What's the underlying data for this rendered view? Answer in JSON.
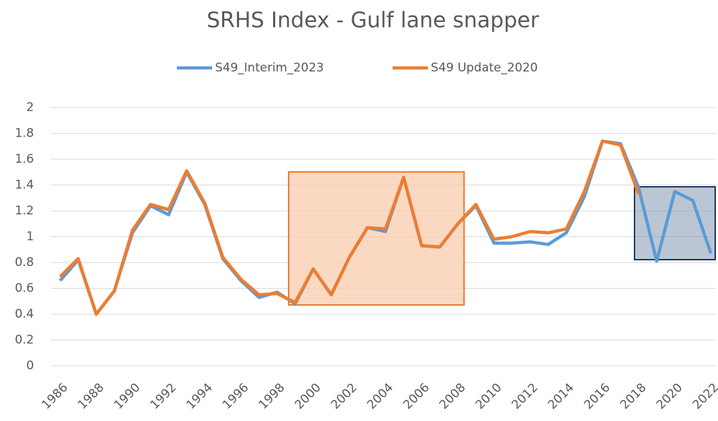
{
  "chart_data": {
    "type": "line",
    "title": "SRHS Index - Gulf lane snapper",
    "categories": [
      "1986",
      null,
      "1988",
      null,
      "1990",
      null,
      "1992",
      null,
      "1994",
      null,
      "1996",
      null,
      "1998",
      null,
      "2000",
      null,
      "2002",
      null,
      "2004",
      null,
      "2006",
      null,
      "2008",
      null,
      "2010",
      null,
      "2012",
      null,
      "2014",
      null,
      "2016",
      null,
      "2018",
      null,
      "2020",
      null,
      "2022"
    ],
    "series": [
      {
        "name": "S49_Interim_2023",
        "color": "#5b9bd5",
        "values": [
          0.66,
          0.82,
          0.4,
          0.58,
          1.03,
          1.24,
          1.17,
          1.5,
          1.25,
          0.83,
          0.66,
          0.53,
          0.57,
          0.48,
          0.75,
          0.55,
          0.84,
          1.07,
          1.04,
          1.46,
          0.93,
          0.92,
          1.1,
          1.24,
          0.95,
          0.95,
          0.96,
          0.94,
          1.03,
          1.31,
          1.74,
          1.72,
          1.38,
          0.81,
          1.35,
          1.28,
          0.87
        ]
      },
      {
        "name": "S49 Update_2020",
        "color": "#ed7d31",
        "values": [
          0.69,
          0.83,
          0.4,
          0.58,
          1.05,
          1.25,
          1.21,
          1.51,
          1.26,
          0.84,
          0.67,
          0.55,
          0.56,
          0.49,
          0.75,
          0.55,
          0.84,
          1.07,
          1.06,
          1.46,
          0.93,
          0.92,
          1.1,
          1.25,
          0.98,
          1.0,
          1.04,
          1.03,
          1.06,
          1.35,
          1.74,
          1.71,
          1.33,
          null,
          null,
          null,
          null
        ]
      }
    ],
    "ylim": [
      0,
      2
    ],
    "yticks": [
      0,
      0.2,
      0.4,
      0.6,
      0.8,
      1,
      1.2,
      1.4,
      1.6,
      1.8,
      2
    ],
    "grid": true,
    "legend": "top"
  }
}
